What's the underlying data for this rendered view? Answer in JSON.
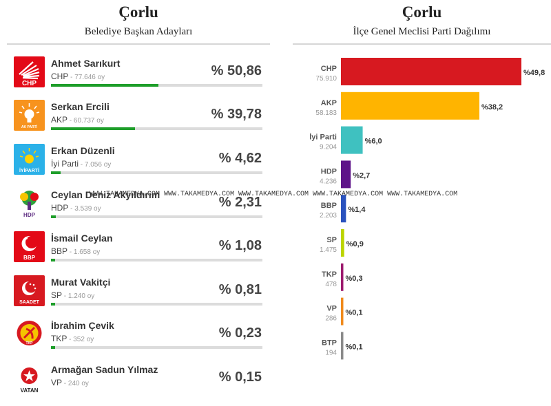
{
  "left": {
    "title": "Çorlu",
    "subtitle": "Belediye Başkan Adayları",
    "candidates": [
      {
        "name": "Ahmet Sarıkurt",
        "party": "CHP",
        "votes": "77.646",
        "pct_label": "% 50,86",
        "pct": 50.86,
        "logo": "chp-logo",
        "color": "#e30a17"
      },
      {
        "name": "Serkan Ercili",
        "party": "AKP",
        "votes": "60.737",
        "pct_label": "% 39,78",
        "pct": 39.78,
        "logo": "akp-logo",
        "color": "#f7931e"
      },
      {
        "name": "Erkan Düzenli",
        "party": "İyi Parti",
        "votes": "7.056",
        "pct_label": "% 4,62",
        "pct": 4.62,
        "logo": "iyi-parti-logo",
        "color": "#2bb1e8"
      },
      {
        "name": "Ceylan Deniz Akyıldırım",
        "party": "HDP",
        "votes": "3.539",
        "pct_label": "% 2,31",
        "pct": 2.31,
        "logo": "hdp-logo",
        "color": "#5e2d82"
      },
      {
        "name": "İsmail Ceylan",
        "party": "BBP",
        "votes": "1.658",
        "pct_label": "% 1,08",
        "pct": 1.08,
        "logo": "bbp-logo",
        "color": "#e30a17"
      },
      {
        "name": "Murat Vakitçi",
        "party": "SP",
        "votes": "1.240",
        "pct_label": "% 0,81",
        "pct": 0.81,
        "logo": "saadet-logo",
        "color": "#d71920"
      },
      {
        "name": "İbrahim Çevik",
        "party": "TKP",
        "votes": "352",
        "pct_label": "% 0,23",
        "pct": 0.23,
        "logo": "tkp-logo",
        "color": "#d71920"
      },
      {
        "name": "Armağan Sadun Yılmaz",
        "party": "VP",
        "votes": "240",
        "pct_label": "% 0,15",
        "pct": 0.15,
        "logo": "vatan-logo",
        "color": "#d71920"
      }
    ],
    "vote_suffix": "oy",
    "bar_color": "#1e9e2a"
  },
  "right_title": "Çorlu",
  "right_subtitle": "İlçe Genel Meclisi Parti Dağılımı",
  "watermark": "WWW.TAKAMEDYA.COM WWW.TAKAMEDYA.COM WWW.TAKAMEDYA.COM WWW.TAKAMEDYA.COM WWW.TAKAMEDYA.COM",
  "chart_data": {
    "type": "bar",
    "orientation": "horizontal",
    "title": "Çorlu",
    "subtitle": "İlçe Genel Meclisi Parti Dağılımı",
    "categories": [
      "CHP",
      "AKP",
      "İyi Parti",
      "HDP",
      "BBP",
      "SP",
      "TKP",
      "VP",
      "BTP"
    ],
    "votes": [
      "75.910",
      "58.183",
      "9.204",
      "4.236",
      "2.203",
      "1.475",
      "478",
      "286",
      "194"
    ],
    "values": [
      49.8,
      38.2,
      6.0,
      2.7,
      1.4,
      0.9,
      0.3,
      0.1,
      0.1
    ],
    "value_labels": [
      "%49,8",
      "%38,2",
      "%6,0",
      "%2,7",
      "%1,4",
      "%0,9",
      "%0,3",
      "%0,1",
      "%0,1"
    ],
    "colors": [
      "#d71920",
      "#ffb400",
      "#3fc1c0",
      "#5e1389",
      "#2a52be",
      "#bcd400",
      "#9c1a6e",
      "#f08a1c",
      "#8a8a8a"
    ],
    "xlim": [
      0,
      49.8
    ],
    "grid": false
  }
}
